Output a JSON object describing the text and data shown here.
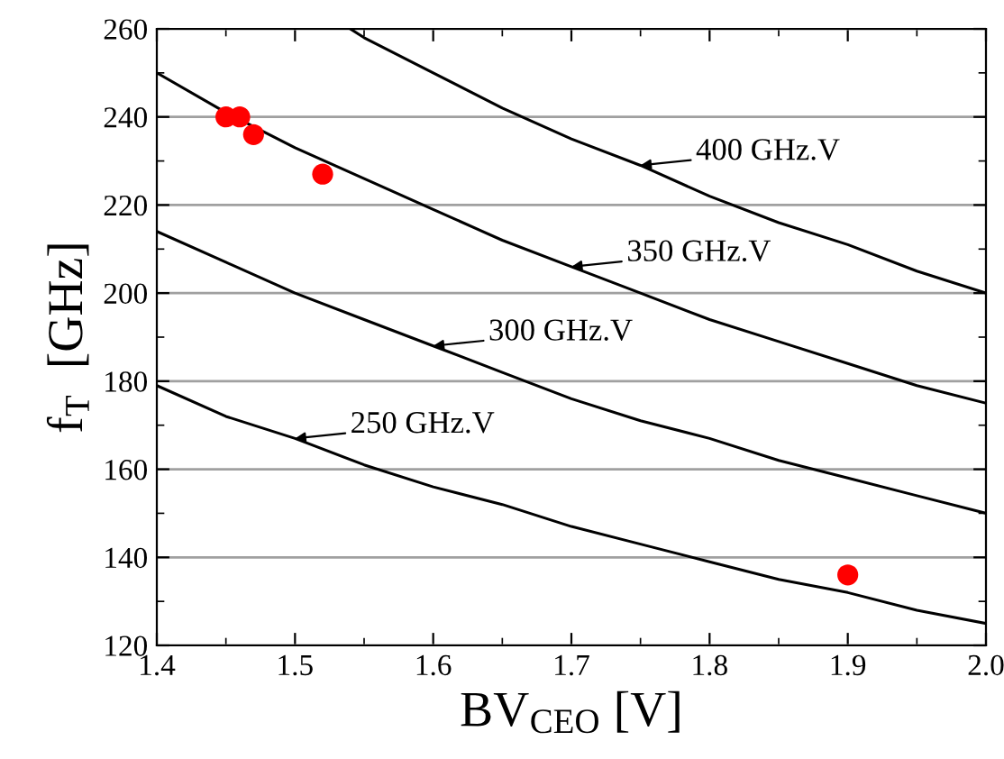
{
  "chart_data": {
    "type": "line",
    "xlabel": "BV$_{CEO}$ [V]",
    "ylabel": "f$_{T}$  [GHz]",
    "xlim": [
      1.4,
      2.0
    ],
    "xticks": [
      {
        "value": 1.4,
        "label": "1.4"
      },
      {
        "value": 1.5,
        "label": "1.5"
      },
      {
        "value": 1.6,
        "label": "1.6"
      },
      {
        "value": 1.7,
        "label": "1.7"
      },
      {
        "value": 1.8,
        "label": "1.8"
      },
      {
        "value": 1.9,
        "label": "1.9"
      },
      {
        "value": 2.0,
        "label": "2.0"
      }
    ],
    "ylim": [
      120,
      260
    ],
    "yticks": [
      120,
      140,
      160,
      180,
      200,
      220,
      240,
      260
    ],
    "grid": "y",
    "legend": false,
    "series": [
      {
        "color": "#000000",
        "marker": "none",
        "line_style": "solid",
        "x": [
          1.4,
          1.45,
          1.5,
          1.55,
          1.6,
          1.65,
          1.7,
          1.75,
          1.8,
          1.85,
          1.9,
          1.95,
          2.0
        ],
        "values": [
          179,
          172,
          167,
          161,
          156,
          152,
          147,
          143,
          139,
          135,
          132,
          128,
          125
        ]
      },
      {
        "color": "#000000",
        "marker": "none",
        "line_style": "solid",
        "x": [
          1.4,
          1.45,
          1.5,
          1.55,
          1.6,
          1.65,
          1.7,
          1.75,
          1.8,
          1.85,
          1.9,
          1.95,
          2.0
        ],
        "values": [
          214,
          207,
          200,
          194,
          188,
          182,
          176,
          171,
          167,
          162,
          158,
          154,
          150
        ]
      },
      {
        "color": "#000000",
        "marker": "none",
        "line_style": "solid",
        "x": [
          1.4,
          1.45,
          1.5,
          1.55,
          1.6,
          1.65,
          1.7,
          1.75,
          1.8,
          1.85,
          1.9,
          1.95,
          2.0
        ],
        "values": [
          250,
          241,
          233,
          226,
          219,
          212,
          206,
          200,
          194,
          189,
          184,
          179,
          175
        ]
      },
      {
        "color": "#000000",
        "marker": "none",
        "line_style": "solid",
        "x": [
          1.54,
          1.55,
          1.6,
          1.65,
          1.7,
          1.75,
          1.8,
          1.85,
          1.9,
          1.95,
          2.0
        ],
        "values": [
          260,
          258,
          250,
          242,
          235,
          229,
          222,
          216,
          211,
          205,
          200
        ]
      },
      {
        "type": "scatter",
        "color": "#ff0000",
        "marker": "circle",
        "x": [
          1.45,
          1.46,
          1.47,
          1.52,
          1.9
        ],
        "values": [
          240,
          240,
          236,
          227,
          136
        ]
      }
    ],
    "annotations": [
      {
        "text": "250 GHz.V",
        "x": 1.5,
        "y": 167
      },
      {
        "text": "300 GHz.V",
        "x": 1.6,
        "y": 188
      },
      {
        "text": "350 GHz.V",
        "x": 1.7,
        "y": 206
      },
      {
        "text": "400 GHz.V",
        "x": 1.75,
        "y": 229
      }
    ]
  }
}
